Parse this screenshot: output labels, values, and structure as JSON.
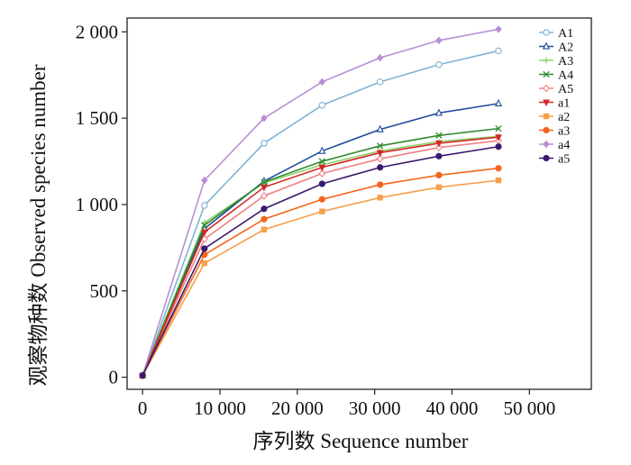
{
  "chart_data": {
    "type": "line",
    "xlabel": "序列数 Sequence number",
    "ylabel": "观察物种数 Observed species number",
    "xlim": [
      -2000,
      58000
    ],
    "ylim": [
      -70,
      2080
    ],
    "xticks": [
      0,
      10000,
      20000,
      30000,
      40000,
      50000
    ],
    "xtick_labels": [
      "0",
      "10 000",
      "20 000",
      "30 000",
      "40 000",
      "50 000"
    ],
    "yticks": [
      0,
      500,
      1000,
      1500,
      2000
    ],
    "ytick_labels": [
      "0",
      "500",
      "1 000",
      "1 500",
      "2 000"
    ],
    "grid": false,
    "legend_position": "top-right",
    "x": [
      0,
      8000,
      15700,
      23200,
      30700,
      38300,
      46000
    ],
    "series": [
      {
        "name": "A1",
        "color": "#7fb3d3",
        "marker": "circle-open",
        "values": [
          10,
          995,
          1355,
          1575,
          1710,
          1810,
          1890
        ]
      },
      {
        "name": "A2",
        "color": "#1f4e9c",
        "marker": "triangle-open",
        "values": [
          10,
          860,
          1135,
          1310,
          1435,
          1530,
          1585
        ]
      },
      {
        "name": "A3",
        "color": "#8ed36a",
        "marker": "plus",
        "values": [
          10,
          895,
          1125,
          1230,
          1310,
          1365,
          1395
        ]
      },
      {
        "name": "A4",
        "color": "#2f8a2f",
        "marker": "cross",
        "values": [
          10,
          880,
          1130,
          1250,
          1340,
          1400,
          1440
        ]
      },
      {
        "name": "A5",
        "color": "#f08080",
        "marker": "diamond-open",
        "values": [
          10,
          800,
          1050,
          1180,
          1265,
          1330,
          1370
        ]
      },
      {
        "name": "a1",
        "color": "#d62728",
        "marker": "triangle-down",
        "values": [
          10,
          840,
          1100,
          1215,
          1300,
          1355,
          1390
        ]
      },
      {
        "name": "a2",
        "color": "#f5a04a",
        "marker": "square",
        "values": [
          10,
          660,
          855,
          960,
          1040,
          1100,
          1140
        ]
      },
      {
        "name": "a3",
        "color": "#f2651a",
        "marker": "circle",
        "values": [
          10,
          710,
          915,
          1030,
          1115,
          1170,
          1210
        ]
      },
      {
        "name": "a4",
        "color": "#b88fd6",
        "marker": "diamond",
        "values": [
          10,
          1140,
          1500,
          1710,
          1850,
          1950,
          2015
        ]
      },
      {
        "name": "a5",
        "color": "#3a1a6e",
        "marker": "circle",
        "values": [
          10,
          745,
          975,
          1120,
          1215,
          1280,
          1335
        ]
      }
    ]
  }
}
